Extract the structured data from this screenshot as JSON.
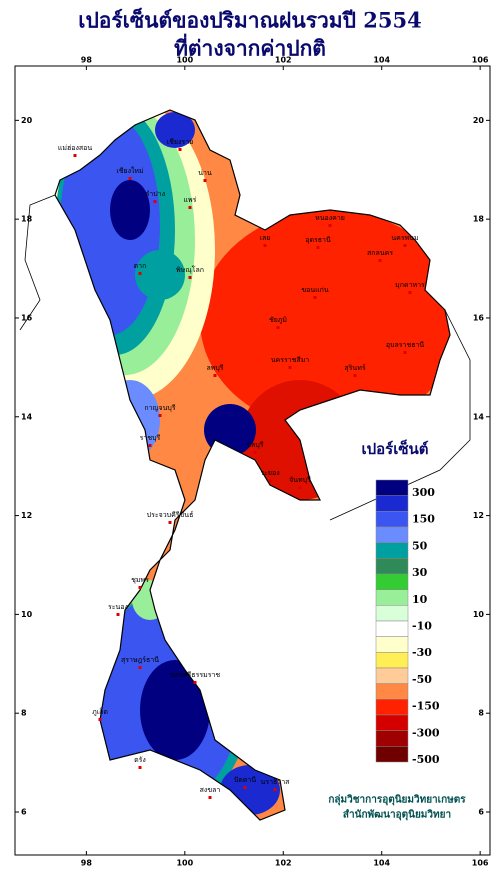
{
  "title": [
    "เปอร์เซ็นต์ของปริมาณฝนรวมปี 2554",
    "ที่ต่างจากค่าปกติ"
  ],
  "map": {
    "xlim": [
      96.55,
      106.2
    ],
    "ylim": [
      5.13,
      21.1
    ],
    "xticks": [
      98,
      100,
      102,
      104,
      106
    ],
    "yticks": [
      6,
      8,
      10,
      12,
      14,
      16,
      18,
      20
    ]
  },
  "places": [
    "เชียงราย",
    "แม่ฮ่องสอน",
    "เชียงใหม่",
    "ลำปาง",
    "น่าน",
    "แพร่",
    "ตาก",
    "พิษณุโลก",
    "เลย",
    "อุดรธานี",
    "หนองคาย",
    "นครพนม",
    "สกลนคร",
    "มุกดาหาร",
    "ขอนแก่น",
    "ชัยภูมิ",
    "นครราชสีมา",
    "สุรินทร์",
    "อุบลราชธานี",
    "ลพบุรี",
    "กาญจนบุรี",
    "ราชบุรี",
    "ชลบุรี",
    "ระยอง",
    "จันทบุรี",
    "ประจวบคีรีขันธ์",
    "ชุมพร",
    "ระนอง",
    "สุราษฎร์ธานี",
    "นครศรีธรรมราช",
    "ภูเก็ต",
    "ตรัง",
    "สงขลา",
    "ปัตตานี",
    "นราธิวาส"
  ],
  "legend": {
    "title": "เปอร์เซ็นต์",
    "colors": [
      "#000080",
      "#1a2ad0",
      "#3b55f0",
      "#6a8cff",
      "#00a0a0",
      "#2e8b57",
      "#33cc33",
      "#99ee99",
      "#d8ffd8",
      "#ffffff",
      "#ffffcc",
      "#ffee55",
      "#ffcc99",
      "#ff8844",
      "#ff2200",
      "#d40000",
      "#a00000",
      "#700000"
    ],
    "labels": [
      300,
      150,
      50,
      30,
      10,
      -10,
      -30,
      -50,
      -150,
      -300,
      -500
    ]
  },
  "credits": [
    "กลุ่มวิชาการอุตุนิยมวิทยาเกษตร",
    "สำนักพัฒนาอุตุนิยมวิทยา"
  ]
}
